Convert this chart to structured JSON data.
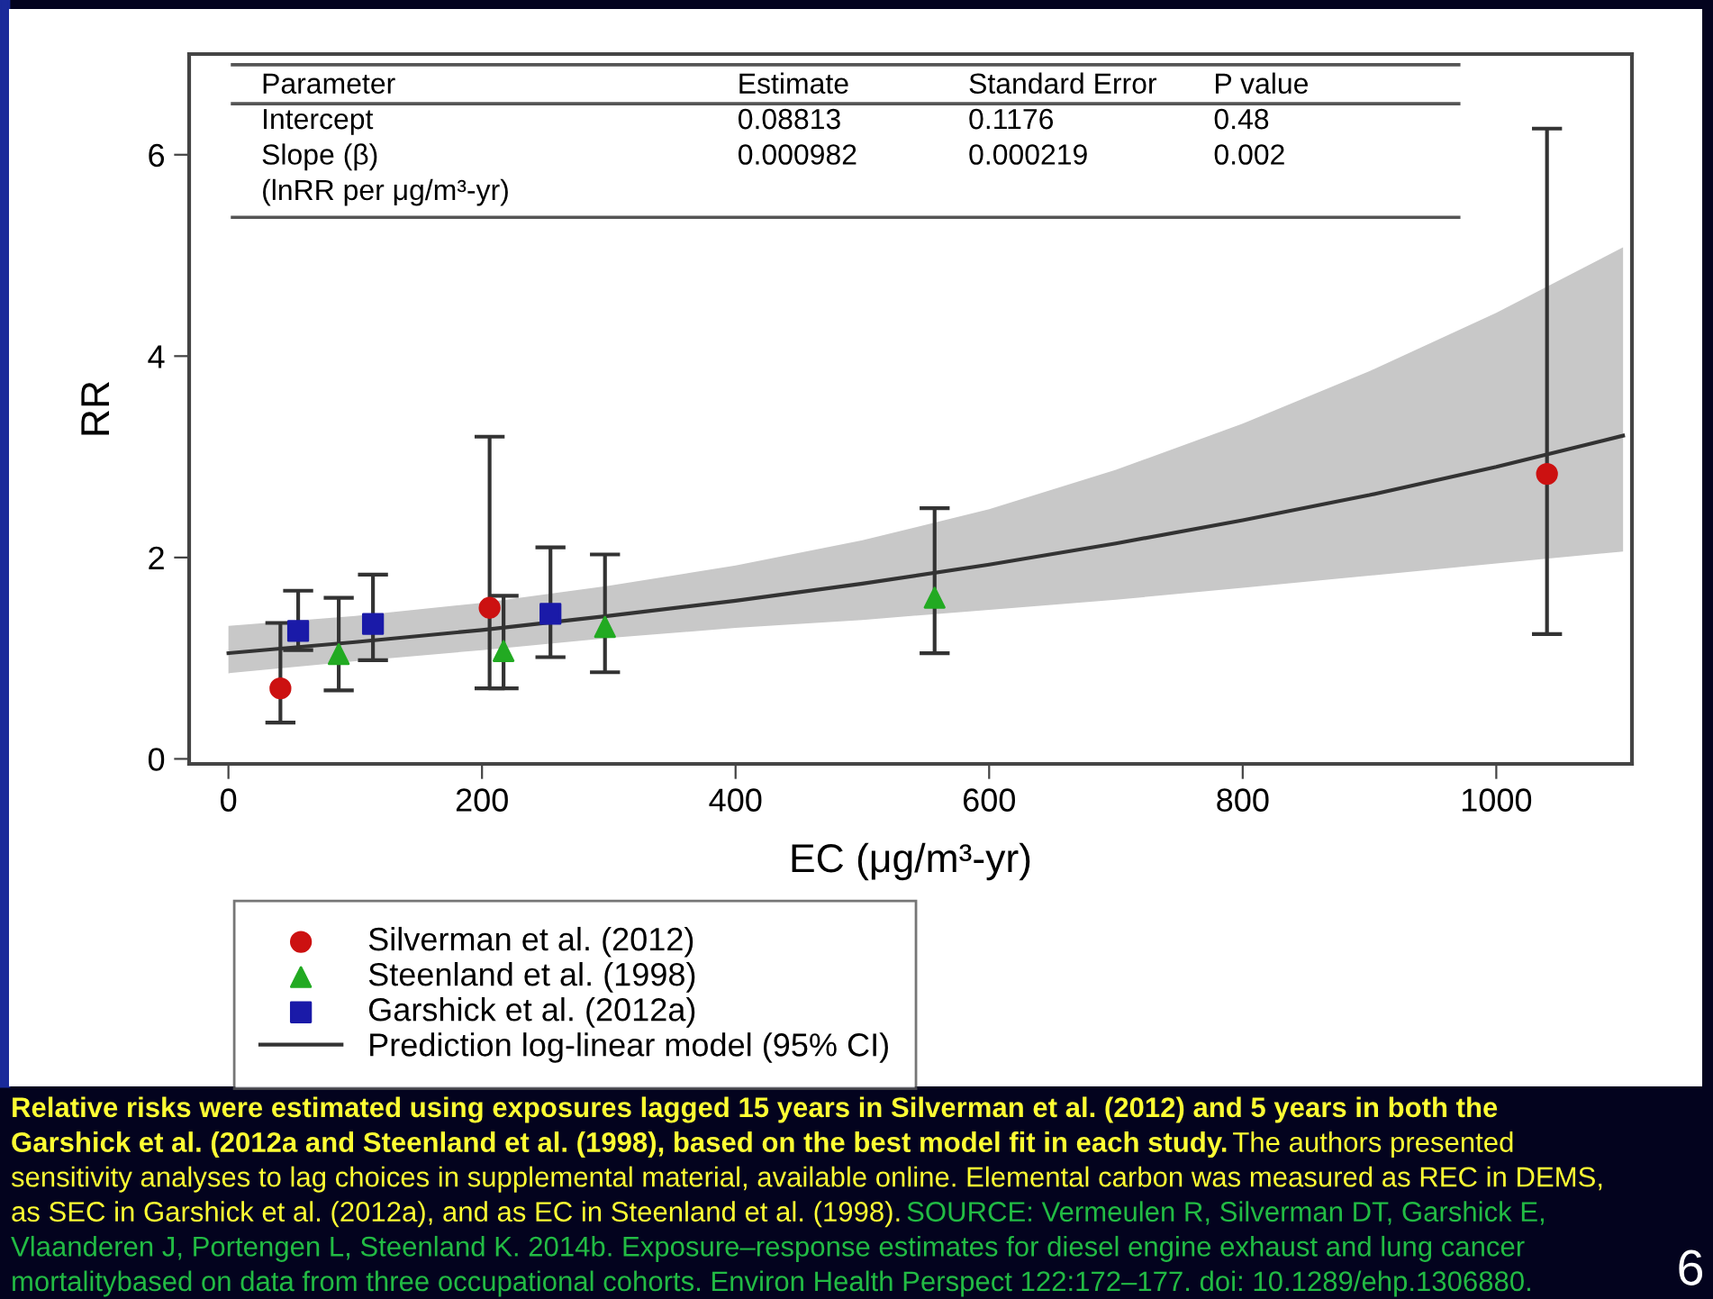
{
  "chart_data": {
    "type": "scatter",
    "xlabel": "EC (μg/m³-yr)",
    "ylabel": "RR",
    "xlim": [
      -31,
      1107
    ],
    "ylim": [
      -0.05,
      7.0
    ],
    "xticks": [
      0,
      200,
      400,
      600,
      800,
      1000
    ],
    "yticks": [
      0,
      2,
      4,
      6
    ],
    "grid": false,
    "legend": "bottom left",
    "series": [
      {
        "name": "Silverman et al. (2012)",
        "color": "#cc1111",
        "marker": "circle",
        "x": [
          41,
          206,
          1040
        ],
        "values": [
          0.7,
          1.5,
          2.83
        ],
        "errors": [
          [
            0.36,
            1.35
          ],
          [
            0.7,
            3.2
          ],
          [
            1.24,
            6.26
          ]
        ]
      },
      {
        "name": "Steenland et al. (1998)",
        "color": "#22aa22",
        "marker": "triangle",
        "x": [
          87,
          217,
          297,
          557
        ],
        "values": [
          1.04,
          1.07,
          1.31,
          1.6
        ],
        "errors": [
          [
            0.68,
            1.6
          ],
          [
            0.7,
            1.62
          ],
          [
            0.86,
            2.03
          ],
          [
            1.05,
            2.49
          ]
        ]
      },
      {
        "name": "Garshick et al. (2012a)",
        "color": "#1a1aa8",
        "marker": "square",
        "x": [
          55,
          114,
          254
        ],
        "values": [
          1.27,
          1.34,
          1.44
        ],
        "errors": [
          [
            1.08,
            1.67
          ],
          [
            0.98,
            1.83
          ],
          [
            1.01,
            2.1
          ]
        ]
      },
      {
        "name": "Prediction log-linear model (95% CI)",
        "type": "line",
        "color": "#333333",
        "line_style": "solid",
        "x": [
          0,
          100,
          200,
          300,
          400,
          500,
          600,
          700,
          800,
          900,
          1000,
          1100
        ],
        "values": [
          1.05,
          1.16,
          1.28,
          1.42,
          1.57,
          1.74,
          1.93,
          2.14,
          2.37,
          2.62,
          2.9,
          3.21
        ],
        "lower": [
          0.85,
          0.97,
          1.08,
          1.2,
          1.3,
          1.38,
          1.48,
          1.58,
          1.7,
          1.82,
          1.94,
          2.06
        ],
        "upper": [
          1.32,
          1.42,
          1.55,
          1.72,
          1.92,
          2.17,
          2.48,
          2.87,
          3.33,
          3.85,
          4.43,
          5.08
        ]
      }
    ],
    "annotations": [
      "Parameter",
      "Estimate",
      "Standard Error",
      "P value",
      "Intercept",
      "0.08813",
      "0.1176",
      "0.48",
      "Slope (β)",
      "0.000982",
      "0.000219",
      "0.002",
      "(lnRR per μg/m³-yr)",
      "Relative risks were estimated using exposures lagged 15 years in Silverman et al. (2012) and 5 years in both the",
      "Garshick et al. (2012a and Steenland et al. (1998), based on the best model fit in each study.",
      " The authors presented",
      "sensitivity analyses to lag choices in supplemental material, available online. Elemental carbon was measured as REC in DEMS,",
      "as SEC in Garshick et al. (2012a), and as EC in Steenland et al. (1998).",
      " SOURCE: Vermeulen R, Silverman DT, Garshick E,",
      "Vlaanderen J, Portengen L, Steenland K. 2014b. Exposure–response estimates for diesel engine exhaust and lung cancer",
      "mortalitybased on data from three occupational cohorts. Environ Health Perspect 122:172–177. doi: 10.1289/ehp.1306880.",
      "6"
    ]
  }
}
